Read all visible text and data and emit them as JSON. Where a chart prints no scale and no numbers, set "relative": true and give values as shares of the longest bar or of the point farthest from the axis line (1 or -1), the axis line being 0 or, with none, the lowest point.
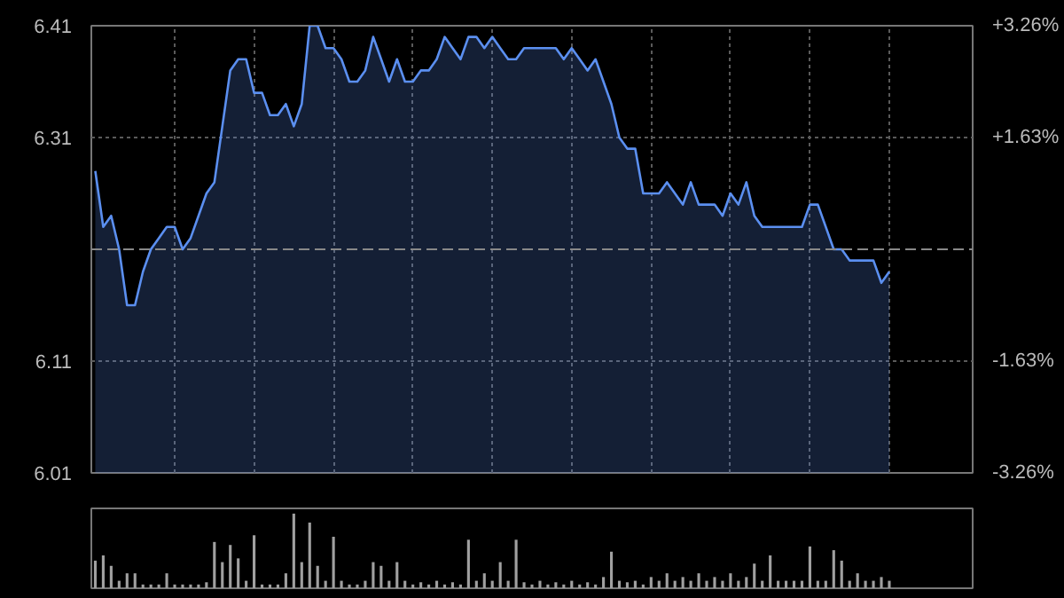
{
  "chart_data": [
    {
      "type": "area",
      "categories": [
        null,
        null,
        null,
        null,
        null,
        null,
        null,
        null,
        null,
        null,
        null,
        null,
        null,
        null,
        null,
        null,
        null,
        null,
        null,
        null,
        null,
        null,
        null,
        null,
        null,
        null,
        null,
        null,
        null,
        null,
        null,
        null,
        null,
        null,
        null,
        null,
        null,
        null,
        null,
        null,
        null,
        null,
        null,
        null,
        null,
        null,
        null,
        null,
        null,
        null,
        null,
        null,
        null,
        null,
        null,
        null,
        null,
        null,
        null,
        null,
        null,
        null,
        null,
        null,
        null,
        null,
        null,
        null,
        null,
        null,
        null,
        null,
        null,
        null,
        null,
        null,
        null,
        null,
        null,
        null,
        null,
        null,
        null,
        null,
        null,
        null,
        null,
        null,
        null,
        null,
        null,
        null,
        null,
        null,
        null,
        null,
        null,
        null,
        null,
        null,
        null
      ],
      "series": [
        {
          "color": "#5b8ff0",
          "values": [
            6.28,
            6.23,
            6.24,
            6.21,
            6.16,
            6.16,
            6.19,
            6.21,
            6.22,
            6.23,
            6.23,
            6.21,
            6.22,
            6.24,
            6.26,
            6.27,
            6.32,
            6.37,
            6.38,
            6.38,
            6.35,
            6.35,
            6.33,
            6.33,
            6.34,
            6.32,
            6.34,
            6.41,
            6.41,
            6.39,
            6.39,
            6.38,
            6.36,
            6.36,
            6.37,
            6.4,
            6.38,
            6.36,
            6.38,
            6.36,
            6.36,
            6.37,
            6.37,
            6.38,
            6.4,
            6.39,
            6.38,
            6.4,
            6.4,
            6.39,
            6.4,
            6.39,
            6.38,
            6.38,
            6.39,
            6.39,
            6.39,
            6.39,
            6.39,
            6.38,
            6.39,
            6.38,
            6.37,
            6.38,
            6.36,
            6.34,
            6.31,
            6.3,
            6.3,
            6.26,
            6.26,
            6.26,
            6.27,
            6.26,
            6.25,
            6.27,
            6.25,
            6.25,
            6.25,
            6.24,
            6.26,
            6.25,
            6.27,
            6.24,
            6.23,
            6.23,
            6.23,
            6.23,
            6.23,
            6.23,
            6.25,
            6.25,
            6.23,
            6.21,
            6.21,
            6.2,
            6.2,
            6.2,
            6.2,
            6.18,
            6.19
          ]
        }
      ],
      "ylim": [
        6.01,
        6.41
      ],
      "yticks": [
        6.01,
        6.11,
        6.31,
        6.41
      ],
      "y2lim": [
        -3.26,
        3.26
      ],
      "y2ticks": [
        {
          "value": -3.26,
          "label": "-3.26%"
        },
        {
          "value": -1.63,
          "label": "-1.63%"
        },
        {
          "value": 1.63,
          "label": "+1.63%"
        },
        {
          "value": 3.26,
          "label": "+3.26%"
        }
      ],
      "ref_lines": [
        {
          "axis": "y",
          "value": 6.21,
          "line_style": "dashed"
        }
      ],
      "grid": true
    },
    {
      "type": "bar",
      "relative": true,
      "categories": [
        null,
        null,
        null,
        null,
        null,
        null,
        null,
        null,
        null,
        null,
        null,
        null,
        null,
        null,
        null,
        null,
        null,
        null,
        null,
        null,
        null,
        null,
        null,
        null,
        null,
        null,
        null,
        null,
        null,
        null,
        null,
        null,
        null,
        null,
        null,
        null,
        null,
        null,
        null,
        null,
        null,
        null,
        null,
        null,
        null,
        null,
        null,
        null,
        null,
        null,
        null,
        null,
        null,
        null,
        null,
        null,
        null,
        null,
        null,
        null,
        null,
        null,
        null,
        null,
        null,
        null,
        null,
        null,
        null,
        null,
        null,
        null,
        null,
        null,
        null,
        null,
        null,
        null,
        null,
        null,
        null,
        null,
        null,
        null,
        null,
        null,
        null,
        null,
        null,
        null,
        null,
        null,
        null,
        null,
        null,
        null,
        null,
        null,
        null,
        null,
        null
      ],
      "series": [
        {
          "color": "#a0a0a0",
          "values": [
            0.37,
            0.44,
            0.3,
            0.1,
            0.2,
            0.2,
            0.05,
            0.05,
            0.05,
            0.2,
            0.05,
            0.05,
            0.05,
            0.05,
            0.08,
            0.62,
            0.35,
            0.58,
            0.4,
            0.1,
            0.71,
            0.05,
            0.05,
            0.05,
            0.2,
            1.0,
            0.35,
            0.88,
            0.3,
            0.1,
            0.69,
            0.1,
            0.05,
            0.05,
            0.1,
            0.35,
            0.3,
            0.1,
            0.35,
            0.1,
            0.05,
            0.08,
            0.05,
            0.1,
            0.05,
            0.08,
            0.05,
            0.65,
            0.1,
            0.2,
            0.1,
            0.35,
            0.1,
            0.65,
            0.08,
            0.05,
            0.1,
            0.05,
            0.08,
            0.05,
            0.1,
            0.05,
            0.08,
            0.05,
            0.15,
            0.49,
            0.1,
            0.08,
            0.1,
            0.05,
            0.15,
            0.1,
            0.2,
            0.1,
            0.15,
            0.1,
            0.2,
            0.1,
            0.15,
            0.1,
            0.2,
            0.1,
            0.15,
            0.33,
            0.1,
            0.44,
            0.1,
            0.1,
            0.1,
            0.1,
            0.56,
            0.1,
            0.1,
            0.51,
            0.37,
            0.1,
            0.2,
            0.1,
            0.1,
            0.15,
            0.1
          ]
        }
      ]
    }
  ]
}
